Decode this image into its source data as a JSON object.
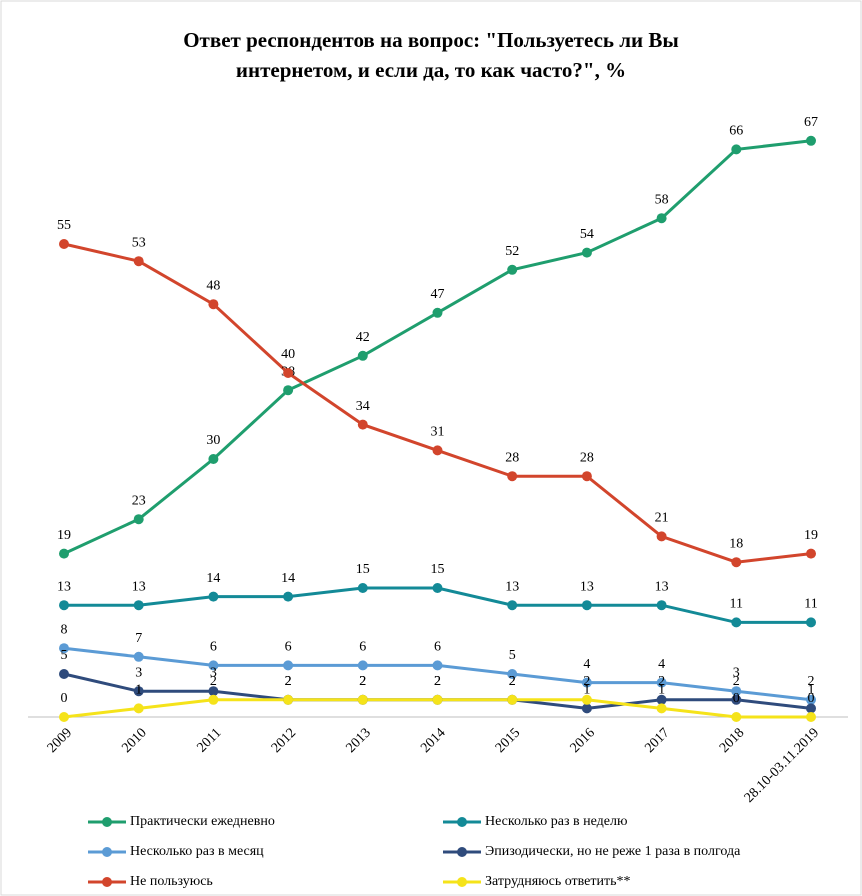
{
  "chart_data": {
    "type": "line",
    "title": [
      "Ответ респондентов на вопрос: \"Пользуетесь ли  Вы",
      "интернетом, и если да, то как часто?\", %"
    ],
    "categories": [
      "2009",
      "2010",
      "2011",
      "2012",
      "2013",
      "2014",
      "2015",
      "2016",
      "2017",
      "2018",
      "28.10-03.11.2019"
    ],
    "series": [
      {
        "name": "Практически ежедневно",
        "color": "#1f9e6e",
        "values": [
          19,
          23,
          30,
          38,
          42,
          47,
          52,
          54,
          58,
          66,
          67
        ]
      },
      {
        "name": "Несколько раз в неделю",
        "color": "#138a97",
        "values": [
          13,
          13,
          14,
          14,
          15,
          15,
          13,
          13,
          13,
          11,
          11
        ]
      },
      {
        "name": "Несколько раз в месяц",
        "color": "#5b9bd5",
        "values": [
          8,
          7,
          6,
          6,
          6,
          6,
          5,
          4,
          4,
          3,
          2
        ]
      },
      {
        "name": "Эпизодически, но не реже 1 раза в полгода",
        "color": "#2f4b7c",
        "values": [
          5,
          3,
          3,
          2,
          2,
          2,
          2,
          1,
          2,
          2,
          1
        ]
      },
      {
        "name": "Не пользуюсь",
        "color": "#d2452c",
        "values": [
          55,
          53,
          48,
          40,
          34,
          31,
          28,
          28,
          21,
          18,
          19
        ]
      },
      {
        "name": "Затрудняюсь ответить**",
        "color": "#f5e31a",
        "values": [
          0,
          1,
          2,
          2,
          2,
          2,
          2,
          2,
          1,
          0,
          0
        ]
      }
    ],
    "ylim": [
      0,
      70
    ],
    "legend": "bottom"
  }
}
